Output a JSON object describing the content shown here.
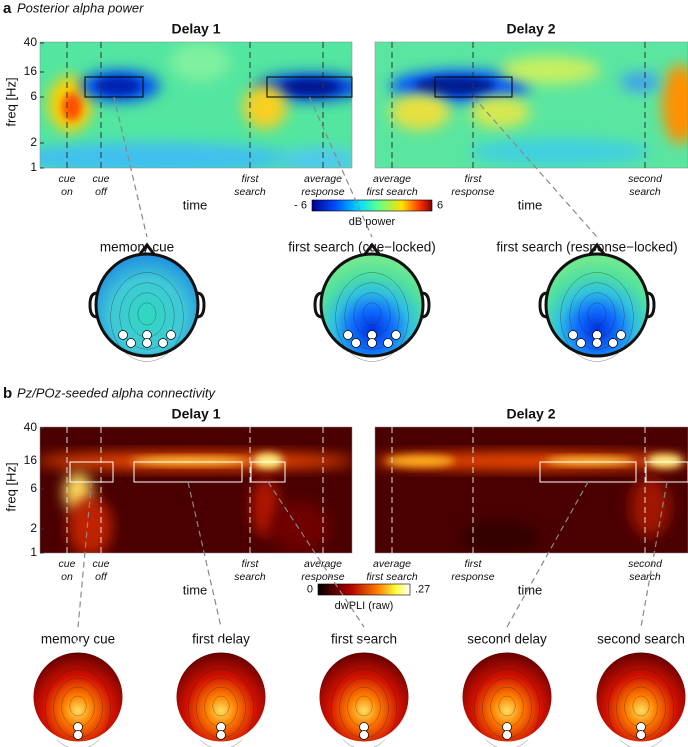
{
  "panel_a": {
    "label": "a",
    "title": "Posterior alpha power",
    "delay_titles": [
      "Delay 1",
      "Delay 2"
    ],
    "y_axis_label": "freq [Hz]",
    "y_ticks": [
      "40",
      "16",
      "6",
      "2",
      "1"
    ],
    "events_left": [
      [
        "cue",
        "on"
      ],
      [
        "cue",
        "off"
      ],
      [
        "first",
        "search"
      ],
      [
        "average",
        "response"
      ]
    ],
    "events_right": [
      [
        "average",
        "first search"
      ],
      [
        "first",
        "response"
      ],
      [
        "second",
        "search"
      ]
    ],
    "x_axis_label": "time",
    "colorbar": {
      "min": "- 6",
      "max": "6",
      "label": "dB power"
    },
    "topographies": [
      "memory cue",
      "first search (cue−locked)",
      "first search (response−locked)"
    ]
  },
  "panel_b": {
    "label": "b",
    "title": "Pz/POz-seeded alpha connectivity",
    "delay_titles": [
      "Delay 1",
      "Delay 2"
    ],
    "y_axis_label": "freq [Hz]",
    "y_ticks": [
      "40",
      "16",
      "6",
      "2",
      "1"
    ],
    "events_left": [
      [
        "cue",
        "on"
      ],
      [
        "cue",
        "off"
      ],
      [
        "first",
        "search"
      ],
      [
        "average",
        "response"
      ]
    ],
    "events_right": [
      [
        "average",
        "first search"
      ],
      [
        "first",
        "response"
      ],
      [
        "second",
        "search"
      ]
    ],
    "x_axis_label": "time",
    "colorbar": {
      "min": "0",
      "max": ".27",
      "label": "dwPLI (raw)"
    },
    "topographies": [
      "memory cue",
      "first delay",
      "first search",
      "second delay",
      "second search"
    ]
  }
}
